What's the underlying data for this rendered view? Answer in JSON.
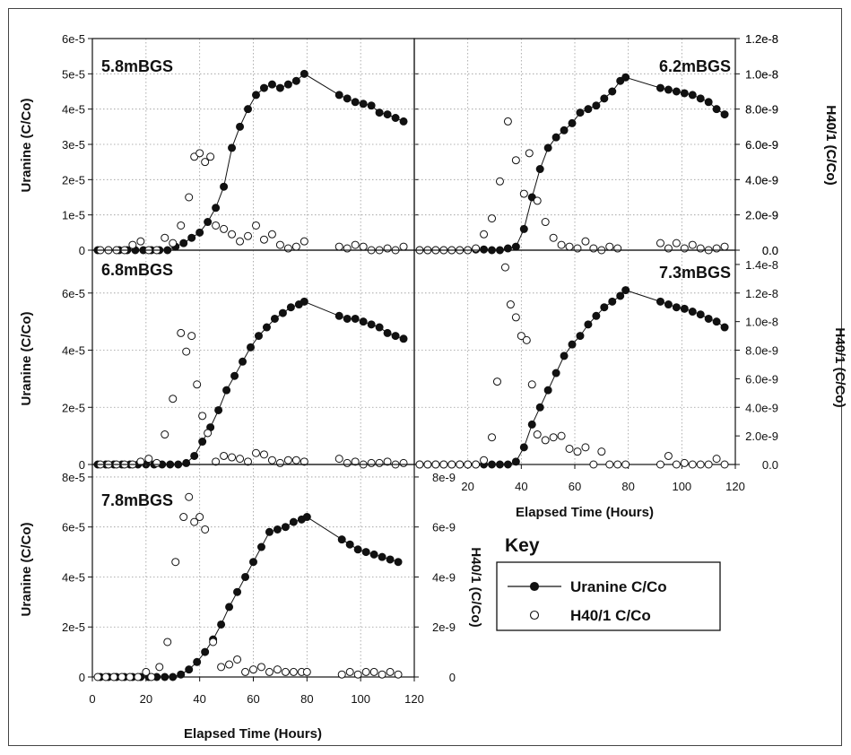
{
  "chart_data": [
    {
      "type": "scatter",
      "title": "5.8mBGS",
      "xlabel": "",
      "ylabel": "Uranine (C/Co)",
      "y2label": "H40/1 (C/Co)",
      "xlim": [
        0,
        120
      ],
      "ylim": [
        0,
        6e-05
      ],
      "y2lim": [
        0,
        1.2e-08
      ],
      "yticks": [
        "0",
        "1e-5",
        "2e-5",
        "3e-5",
        "4e-5",
        "5e-5",
        "6e-5"
      ],
      "y2ticks": [
        "0.0",
        "2.0e-9",
        "4.0e-9",
        "6.0e-9",
        "8.0e-9",
        "1.0e-8",
        "1.2e-8"
      ],
      "xticks": [],
      "grid": true,
      "series": [
        {
          "name": "Uranine C/Co",
          "axis": "left",
          "marker": "filled",
          "line": true,
          "x": [
            2,
            6,
            10,
            13,
            16,
            19,
            22,
            25,
            28,
            31,
            34,
            37,
            40,
            43,
            46,
            49,
            52,
            55,
            58,
            61,
            64,
            67,
            70,
            73,
            76,
            79,
            92,
            95,
            98,
            101,
            104,
            107,
            110,
            113,
            116
          ],
          "y": [
            0,
            0,
            0,
            0,
            0,
            0,
            0,
            0,
            0,
            1e-06,
            2e-06,
            3.5e-06,
            5e-06,
            8e-06,
            1.2e-05,
            1.8e-05,
            2.9e-05,
            3.5e-05,
            4e-05,
            4.4e-05,
            4.6e-05,
            4.7e-05,
            4.6e-05,
            4.7e-05,
            4.8e-05,
            5e-05,
            4.4e-05,
            4.3e-05,
            4.2e-05,
            4.15e-05,
            4.1e-05,
            3.9e-05,
            3.85e-05,
            3.75e-05,
            3.65e-05
          ]
        },
        {
          "name": "H40/1 C/Co",
          "axis": "right",
          "marker": "open",
          "line": false,
          "x": [
            3,
            6,
            9,
            12,
            15,
            18,
            21,
            24,
            27,
            30,
            33,
            36,
            38,
            40,
            42,
            44,
            46,
            49,
            52,
            55,
            58,
            61,
            64,
            67,
            70,
            73,
            76,
            79,
            92,
            95,
            98,
            101,
            104,
            107,
            110,
            113,
            116
          ],
          "y": [
            0,
            0,
            0,
            0,
            3e-10,
            5e-10,
            0,
            0,
            7e-10,
            4e-10,
            1.4e-09,
            3e-09,
            5.3e-09,
            5.5e-09,
            5e-09,
            5.3e-09,
            1.4e-09,
            1.2e-09,
            9e-10,
            5e-10,
            8e-10,
            1.4e-09,
            6e-10,
            9e-10,
            3e-10,
            1e-10,
            2e-10,
            5e-10,
            2e-10,
            1e-10,
            3e-10,
            2e-10,
            0,
            0,
            1e-10,
            0,
            2e-10
          ]
        }
      ]
    },
    {
      "type": "scatter",
      "title": "6.2mBGS",
      "xlabel": "",
      "ylabel": "",
      "y2label": "H40/1 (C/Co)",
      "xlim": [
        0,
        120
      ],
      "ylim": [
        0,
        6e-05
      ],
      "y2lim": [
        0,
        1.2e-08
      ],
      "yticks": [],
      "y2ticks": [
        "0.0",
        "2.0e-9",
        "4.0e-9",
        "6.0e-9",
        "8.0e-9",
        "1.0e-8",
        "1.2e-8"
      ],
      "xticks": [],
      "grid": true,
      "series": [
        {
          "name": "Uranine C/Co",
          "axis": "left",
          "marker": "filled",
          "line": true,
          "x": [
            2,
            5,
            8,
            11,
            14,
            17,
            20,
            23,
            26,
            29,
            32,
            35,
            38,
            41,
            44,
            47,
            50,
            53,
            56,
            59,
            62,
            65,
            68,
            71,
            74,
            77,
            79,
            92,
            95,
            98,
            101,
            104,
            107,
            110,
            113,
            116
          ],
          "y": [
            0,
            0,
            0,
            0,
            0,
            0,
            0,
            2e-07,
            2e-07,
            0,
            0,
            5e-07,
            1e-06,
            6e-06,
            1.5e-05,
            2.3e-05,
            2.9e-05,
            3.2e-05,
            3.4e-05,
            3.6e-05,
            3.9e-05,
            4e-05,
            4.1e-05,
            4.3e-05,
            4.5e-05,
            4.8e-05,
            4.9e-05,
            4.6e-05,
            4.55e-05,
            4.5e-05,
            4.45e-05,
            4.4e-05,
            4.3e-05,
            4.2e-05,
            4e-05,
            3.85e-05
          ]
        },
        {
          "name": "H40/1 C/Co",
          "axis": "right",
          "marker": "open",
          "line": false,
          "x": [
            2,
            5,
            8,
            11,
            14,
            17,
            20,
            23,
            26,
            29,
            32,
            35,
            38,
            41,
            43,
            46,
            49,
            52,
            55,
            58,
            61,
            64,
            67,
            70,
            73,
            76,
            92,
            95,
            98,
            101,
            104,
            107,
            110,
            113,
            116
          ],
          "y": [
            0,
            0,
            0,
            0,
            0,
            0,
            0,
            1e-10,
            9e-10,
            1.8e-09,
            3.9e-09,
            7.3e-09,
            5.1e-09,
            3.2e-09,
            5.5e-09,
            2.8e-09,
            1.6e-09,
            7e-10,
            3e-10,
            2e-10,
            1e-10,
            5e-10,
            1e-10,
            0,
            2e-10,
            1e-10,
            4e-10,
            1e-10,
            4e-10,
            1e-10,
            3e-10,
            1e-10,
            0,
            1e-10,
            2e-10
          ]
        }
      ]
    },
    {
      "type": "scatter",
      "title": "6.8mBGS",
      "xlabel": "",
      "ylabel": "Uranine (C/Co)",
      "y2label": "",
      "xlim": [
        0,
        120
      ],
      "ylim": [
        0,
        7.5e-05
      ],
      "y2lim": [
        0,
        1.5e-08
      ],
      "yticks": [
        "0",
        "2e-5",
        "4e-5",
        "6e-5"
      ],
      "y2ticks": [],
      "xticks": [],
      "grid": true,
      "series": [
        {
          "name": "Uranine C/Co",
          "axis": "left",
          "marker": "filled",
          "line": true,
          "x": [
            2,
            5,
            8,
            11,
            14,
            17,
            20,
            23,
            26,
            29,
            32,
            35,
            38,
            41,
            44,
            47,
            50,
            53,
            56,
            59,
            62,
            65,
            68,
            71,
            74,
            77,
            79,
            92,
            95,
            98,
            101,
            104,
            107,
            110,
            113,
            116
          ],
          "y": [
            0,
            0,
            0,
            0,
            0,
            0,
            0,
            0,
            0,
            0,
            0,
            5e-07,
            3e-06,
            8e-06,
            1.3e-05,
            1.9e-05,
            2.6e-05,
            3.1e-05,
            3.6e-05,
            4.1e-05,
            4.5e-05,
            4.8e-05,
            5.1e-05,
            5.3e-05,
            5.5e-05,
            5.6e-05,
            5.7e-05,
            5.2e-05,
            5.1e-05,
            5.1e-05,
            5e-05,
            4.9e-05,
            4.8e-05,
            4.6e-05,
            4.5e-05,
            4.4e-05
          ]
        },
        {
          "name": "H40/1 C/Co",
          "axis": "right",
          "marker": "open",
          "line": false,
          "x": [
            3,
            6,
            9,
            12,
            15,
            18,
            21,
            24,
            27,
            30,
            33,
            35,
            37,
            39,
            41,
            43,
            46,
            49,
            52,
            55,
            58,
            61,
            64,
            67,
            70,
            73,
            76,
            79,
            92,
            95,
            98,
            101,
            104,
            107,
            110,
            113,
            116
          ],
          "y": [
            0,
            0,
            0,
            0,
            0,
            2e-10,
            4e-10,
            1e-10,
            2.1e-09,
            4.6e-09,
            9.2e-09,
            7.9e-09,
            9e-09,
            5.6e-09,
            3.4e-09,
            2.2e-09,
            2e-10,
            6e-10,
            5e-10,
            4e-10,
            2e-10,
            8e-10,
            7e-10,
            3e-10,
            1e-10,
            3e-10,
            3e-10,
            2e-10,
            4e-10,
            1e-10,
            2e-10,
            0,
            1e-10,
            1e-10,
            2e-10,
            0,
            1e-10
          ]
        }
      ]
    },
    {
      "type": "scatter",
      "title": "7.3mBGS",
      "xlabel": "Elapsed Time (Hours)",
      "ylabel": "",
      "y2label": "H40/1 (C/Co)",
      "xlim": [
        0,
        120
      ],
      "ylim": [
        0,
        7.5e-05
      ],
      "y2lim": [
        0,
        1.5e-08
      ],
      "yticks": [],
      "y2ticks": [
        "0.0",
        "2.0e-9",
        "4.0e-9",
        "6.0e-9",
        "8.0e-9",
        "1.0e-8",
        "1.2e-8",
        "1.4e-8"
      ],
      "xticks": [
        "20",
        "40",
        "60",
        "80",
        "100",
        "120"
      ],
      "grid": true,
      "series": [
        {
          "name": "Uranine C/Co",
          "axis": "left",
          "marker": "filled",
          "line": true,
          "x": [
            2,
            5,
            8,
            11,
            14,
            17,
            20,
            23,
            26,
            29,
            32,
            35,
            38,
            41,
            44,
            47,
            50,
            53,
            56,
            59,
            62,
            65,
            68,
            71,
            74,
            77,
            79,
            92,
            95,
            98,
            101,
            104,
            107,
            110,
            113,
            116
          ],
          "y": [
            0,
            0,
            0,
            0,
            0,
            0,
            0,
            0,
            0,
            0,
            0,
            0,
            1e-06,
            6e-06,
            1.4e-05,
            2e-05,
            2.6e-05,
            3.2e-05,
            3.8e-05,
            4.2e-05,
            4.5e-05,
            4.9e-05,
            5.2e-05,
            5.5e-05,
            5.7e-05,
            5.9e-05,
            6.1e-05,
            5.7e-05,
            5.6e-05,
            5.5e-05,
            5.45e-05,
            5.35e-05,
            5.25e-05,
            5.1e-05,
            5e-05,
            4.8e-05
          ]
        },
        {
          "name": "H40/1 C/Co",
          "axis": "right",
          "marker": "open",
          "line": false,
          "x": [
            2,
            5,
            8,
            11,
            14,
            17,
            20,
            23,
            26,
            29,
            31,
            34,
            36,
            38,
            40,
            42,
            44,
            46,
            49,
            52,
            55,
            58,
            61,
            64,
            67,
            70,
            73,
            76,
            79,
            92,
            95,
            98,
            101,
            104,
            107,
            110,
            113,
            116
          ],
          "y": [
            0,
            0,
            0,
            0,
            0,
            0,
            0,
            0,
            3e-10,
            1.9e-09,
            5.8e-09,
            1.38e-08,
            1.12e-08,
            1.03e-08,
            9e-09,
            8.7e-09,
            5.6e-09,
            2.1e-09,
            1.7e-09,
            1.9e-09,
            2e-09,
            1.1e-09,
            9e-10,
            1.2e-09,
            0,
            9e-10,
            0,
            0,
            0,
            0,
            6e-10,
            0,
            1e-10,
            0,
            0,
            0,
            4e-10,
            0
          ]
        }
      ]
    },
    {
      "type": "scatter",
      "title": "7.8mBGS",
      "xlabel": "Elapsed Time (Hours)",
      "ylabel": "Uranine (C/Co)",
      "y2label": "H40/1 (C/Co)",
      "xlim": [
        0,
        120
      ],
      "ylim": [
        0,
        8.5e-05
      ],
      "y2lim": [
        0,
        8.5e-09
      ],
      "yticks": [
        "0",
        "2e-5",
        "4e-5",
        "6e-5",
        "8e-5"
      ],
      "y2ticks": [
        "0",
        "2e-9",
        "4e-9",
        "6e-9",
        "8e-9"
      ],
      "xticks": [
        "0",
        "20",
        "40",
        "60",
        "80",
        "100",
        "120"
      ],
      "grid": true,
      "series": [
        {
          "name": "Uranine C/Co",
          "axis": "left",
          "marker": "filled",
          "line": true,
          "x": [
            3,
            6,
            9,
            12,
            15,
            18,
            21,
            24,
            27,
            30,
            33,
            36,
            39,
            42,
            45,
            48,
            51,
            54,
            57,
            60,
            63,
            66,
            69,
            72,
            75,
            78,
            80,
            93,
            96,
            99,
            102,
            105,
            108,
            111,
            114
          ],
          "y": [
            0,
            0,
            0,
            0,
            0,
            0,
            0,
            0,
            0,
            0,
            1e-06,
            3e-06,
            6e-06,
            1e-05,
            1.5e-05,
            2.1e-05,
            2.8e-05,
            3.4e-05,
            4e-05,
            4.6e-05,
            5.2e-05,
            5.8e-05,
            5.9e-05,
            6e-05,
            6.2e-05,
            6.3e-05,
            6.4e-05,
            5.5e-05,
            5.3e-05,
            5.1e-05,
            5e-05,
            4.9e-05,
            4.8e-05,
            4.7e-05,
            4.6e-05
          ]
        },
        {
          "name": "H40/1 C/Co",
          "axis": "right",
          "marker": "open",
          "line": false,
          "x": [
            2,
            5,
            8,
            11,
            14,
            17,
            20,
            22,
            25,
            28,
            31,
            34,
            36,
            38,
            40,
            42,
            45,
            48,
            51,
            54,
            57,
            60,
            63,
            66,
            69,
            72,
            75,
            78,
            80,
            93,
            96,
            99,
            102,
            105,
            108,
            111,
            114
          ],
          "y": [
            0,
            0,
            0,
            0,
            0,
            0,
            2e-10,
            0,
            4e-10,
            1.4e-09,
            4.6e-09,
            6.4e-09,
            7.2e-09,
            6.2e-09,
            6.4e-09,
            5.9e-09,
            1.4e-09,
            4e-10,
            5e-10,
            7e-10,
            2e-10,
            3e-10,
            4e-10,
            2e-10,
            3e-10,
            2e-10,
            2e-10,
            2e-10,
            2e-10,
            1e-10,
            2e-10,
            1e-10,
            2e-10,
            2e-10,
            1e-10,
            2e-10,
            1e-10
          ]
        }
      ]
    }
  ],
  "key": {
    "title": "Key",
    "items": [
      {
        "label": "Uranine C/Co",
        "marker": "filled",
        "line": true
      },
      {
        "label": "H40/1 C/Co",
        "marker": "open",
        "line": false
      }
    ]
  }
}
